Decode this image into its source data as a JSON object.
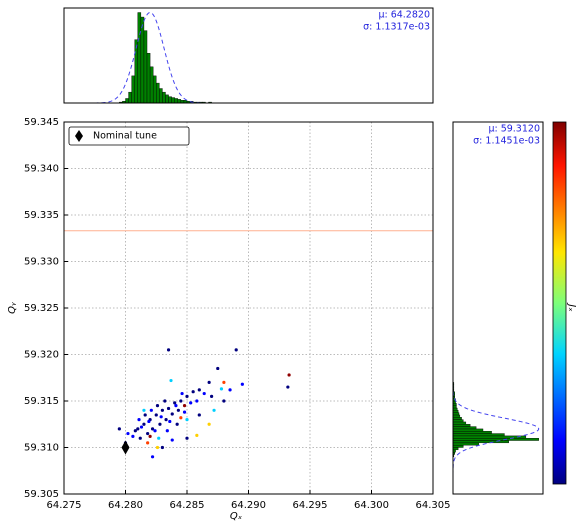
{
  "chart_data": [
    {
      "type": "scatter",
      "x_label": "Qₓ",
      "y_label": "Qᵧ",
      "colorbar_label": "Jₓ",
      "xlim": [
        64.275,
        64.305
      ],
      "xticks": [
        64.275,
        {
          "value": 64.28,
          "label": "64.280"
        },
        64.285,
        {
          "value": 64.29,
          "label": "64.290"
        },
        64.295,
        {
          "value": 64.3,
          "label": "64.300"
        },
        64.305
      ],
      "ylim": [
        59.305,
        59.345
      ],
      "yticks": [
        59.305,
        {
          "value": 59.31,
          "label": "59.310"
        },
        59.315,
        {
          "value": 59.32,
          "label": "59.320"
        },
        59.325,
        {
          "value": 59.33,
          "label": "59.330"
        },
        59.335,
        {
          "value": 59.34,
          "label": "59.340"
        },
        59.345
      ],
      "grid": true,
      "legend": "upper left",
      "hline": {
        "y": 59.3333,
        "color": "#ffb090"
      },
      "nominal": {
        "name": "Nominal tune",
        "x": 64.28,
        "y": 59.31,
        "color": "#000000"
      },
      "series": [
        {
          "color": "#00007f",
          "x": [
            64.281,
            64.2815,
            64.282,
            64.2825,
            64.283,
            64.2835,
            64.284,
            64.2845,
            64.285,
            64.2818,
            64.2822,
            64.2828,
            64.2833,
            64.2838,
            64.2843,
            64.2812,
            64.2808,
            64.2826,
            64.2832,
            64.2855,
            64.286,
            64.2868,
            64.2875,
            64.289,
            64.2932,
            64.2835,
            64.285,
            64.286,
            64.288,
            64.28,
            64.2795,
            64.2842,
            64.2816,
            64.283,
            64.287
          ],
          "y": [
            59.312,
            59.3125,
            59.313,
            59.3135,
            59.314,
            59.3142,
            59.3148,
            59.315,
            59.3155,
            59.3115,
            59.312,
            59.3125,
            59.313,
            59.3136,
            59.314,
            59.311,
            59.3118,
            59.3145,
            59.315,
            59.316,
            59.3162,
            59.317,
            59.3185,
            59.3205,
            59.3165,
            59.3205,
            59.311,
            59.3135,
            59.315,
            59.3105,
            59.312,
            59.3125,
            59.3135,
            59.31,
            59.3155
          ]
        },
        {
          "color": "#0000ff",
          "x": [
            64.2813,
            64.2819,
            64.2824,
            64.2829,
            64.2836,
            64.2841,
            64.2848,
            64.2853,
            64.2806,
            64.2821,
            64.2846,
            64.2858,
            64.2864,
            64.2811,
            64.2834,
            64.2822,
            64.2838,
            64.2885,
            64.2895,
            64.2802
          ],
          "y": [
            59.3122,
            59.3128,
            59.3118,
            59.3133,
            59.3128,
            59.3145,
            59.3138,
            59.3148,
            59.3112,
            59.314,
            59.3158,
            59.315,
            59.3158,
            59.313,
            59.3118,
            59.309,
            59.3108,
            59.3162,
            59.3168,
            59.3115
          ]
        },
        {
          "color": "#00d0ff",
          "x": [
            64.2837,
            64.2872,
            64.2815,
            64.285,
            64.2878,
            64.2827
          ],
          "y": [
            59.3172,
            59.314,
            59.314,
            59.313,
            59.3163,
            59.311
          ]
        },
        {
          "color": "#ffd000",
          "x": [
            64.2826,
            64.2868,
            64.2858
          ],
          "y": [
            59.31,
            59.3125,
            59.3113
          ]
        },
        {
          "color": "#ff4000",
          "x": [
            64.288,
            64.2818,
            64.2845
          ],
          "y": [
            59.317,
            59.3105,
            59.3132
          ]
        },
        {
          "color": "#900000",
          "x": [
            64.282,
            64.2848,
            64.2933
          ],
          "y": [
            59.3112,
            59.3145,
            59.3178
          ]
        }
      ]
    },
    {
      "type": "histogram",
      "orientation": "vertical",
      "color": "#008000",
      "annotations": [
        "μ: 64.2820",
        "σ: 1.1317e-03"
      ],
      "xlim": [
        64.275,
        64.305
      ],
      "ylim": [
        0,
        105
      ],
      "bins": [
        64.2795,
        64.27975,
        64.28,
        64.28025,
        64.2805,
        64.28075,
        64.281,
        64.28125,
        64.2815,
        64.28175,
        64.282,
        64.28225,
        64.2825,
        64.28275,
        64.283,
        64.28325,
        64.2835,
        64.28375,
        64.284,
        64.28425,
        64.2845,
        64.28475,
        64.285,
        64.28525,
        64.2855,
        64.28575,
        64.286,
        64.28625,
        64.2865,
        64.28675,
        64.287
      ],
      "counts": [
        1,
        2,
        5,
        12,
        30,
        70,
        100,
        95,
        80,
        55,
        40,
        30,
        22,
        16,
        12,
        9,
        7,
        6,
        5,
        4,
        3,
        3,
        2,
        2,
        1,
        1,
        1,
        1,
        0,
        1
      ],
      "fit": {
        "mu": 64.282,
        "sigma": 0.0011317,
        "peak": 100,
        "color": "#4444ee"
      }
    },
    {
      "type": "histogram",
      "orientation": "horizontal",
      "color": "#008000",
      "annotations": [
        "μ: 59.3120",
        "σ: 1.1451e-03"
      ],
      "ylim": [
        59.305,
        59.345
      ],
      "xlim": [
        0,
        105
      ],
      "bins": [
        59.309,
        59.30925,
        59.3095,
        59.30975,
        59.31,
        59.31025,
        59.3105,
        59.31075,
        59.311,
        59.31125,
        59.3115,
        59.31175,
        59.312,
        59.31225,
        59.3125,
        59.31275,
        59.313,
        59.31325,
        59.3135,
        59.31375,
        59.314,
        59.31425,
        59.3145,
        59.31475,
        59.315,
        59.31525,
        59.3155,
        59.31575,
        59.316,
        59.31625,
        59.3165,
        59.31675,
        59.317
      ],
      "counts": [
        1,
        2,
        3,
        6,
        12,
        30,
        65,
        100,
        85,
        60,
        45,
        35,
        27,
        20,
        15,
        12,
        10,
        8,
        7,
        6,
        5,
        4,
        4,
        3,
        3,
        2,
        2,
        2,
        1,
        1,
        1,
        1
      ],
      "fit": {
        "mu": 59.312,
        "sigma": 0.0011451,
        "peak": 100,
        "color": "#4444ee"
      }
    }
  ]
}
